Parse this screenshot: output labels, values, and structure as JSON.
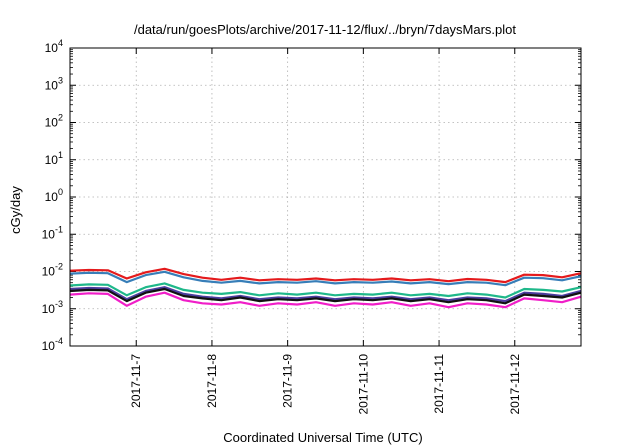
{
  "chart_data": {
    "type": "line",
    "title": "/data/run/goesPlots/archive/2017-11-12/flux/../bryn/7daysMars.plot",
    "xlabel": "Coordinated Universal Time (UTC)",
    "ylabel": "cGy/day",
    "y_scale": "log",
    "ylim": [
      0.0001,
      10000
    ],
    "y_ticks": [
      {
        "value": 0.0001,
        "base": "10",
        "exp": "-4"
      },
      {
        "value": 0.001,
        "base": "10",
        "exp": "-3"
      },
      {
        "value": 0.01,
        "base": "10",
        "exp": "-2"
      },
      {
        "value": 0.1,
        "base": "10",
        "exp": "-1"
      },
      {
        "value": 1,
        "base": "10",
        "exp": "0"
      },
      {
        "value": 10,
        "base": "10",
        "exp": "1"
      },
      {
        "value": 100,
        "base": "10",
        "exp": "2"
      },
      {
        "value": 1000,
        "base": "10",
        "exp": "3"
      },
      {
        "value": 10000,
        "base": "10",
        "exp": "4"
      }
    ],
    "xlim": [
      "2017-11-06T03:00",
      "2017-11-12T21:00"
    ],
    "x_ticks": [
      "2017-11-7",
      "2017-11-8",
      "2017-11-9",
      "2017-11-10",
      "2017-11-11",
      "2017-11-12"
    ],
    "x_tick_dates": [
      "2017-11-07T00:00",
      "2017-11-08T00:00",
      "2017-11-09T00:00",
      "2017-11-10T00:00",
      "2017-11-11T00:00",
      "2017-11-12T00:00"
    ],
    "grid": true,
    "legend": "none",
    "x": [
      "2017-11-06T03:00",
      "2017-11-06T09:00",
      "2017-11-06T15:00",
      "2017-11-06T21:00",
      "2017-11-07T03:00",
      "2017-11-07T09:00",
      "2017-11-07T15:00",
      "2017-11-07T21:00",
      "2017-11-08T03:00",
      "2017-11-08T09:00",
      "2017-11-08T15:00",
      "2017-11-08T21:00",
      "2017-11-09T03:00",
      "2017-11-09T09:00",
      "2017-11-09T15:00",
      "2017-11-09T21:00",
      "2017-11-10T03:00",
      "2017-11-10T09:00",
      "2017-11-10T15:00",
      "2017-11-10T21:00",
      "2017-11-11T03:00",
      "2017-11-11T09:00",
      "2017-11-11T15:00",
      "2017-11-11T21:00",
      "2017-11-12T03:00",
      "2017-11-12T09:00",
      "2017-11-12T15:00",
      "2017-11-12T21:00"
    ],
    "series": [
      {
        "color": "#e41a1c",
        "values": [
          0.0105,
          0.011,
          0.0108,
          0.0065,
          0.0095,
          0.0118,
          0.0085,
          0.0068,
          0.006,
          0.0068,
          0.0058,
          0.0062,
          0.006,
          0.0065,
          0.0058,
          0.0062,
          0.006,
          0.0065,
          0.0058,
          0.0062,
          0.0055,
          0.0063,
          0.006,
          0.0052,
          0.0082,
          0.008,
          0.007,
          0.009
        ]
      },
      {
        "color": "#377eb8",
        "values": [
          0.0088,
          0.0092,
          0.009,
          0.0052,
          0.008,
          0.0098,
          0.007,
          0.0056,
          0.005,
          0.0056,
          0.0048,
          0.0052,
          0.005,
          0.0055,
          0.0048,
          0.0052,
          0.005,
          0.0054,
          0.0048,
          0.0052,
          0.0046,
          0.0052,
          0.005,
          0.0043,
          0.0068,
          0.0066,
          0.0058,
          0.0075
        ]
      },
      {
        "color": "#1fb88a",
        "values": [
          0.0042,
          0.0045,
          0.0044,
          0.0023,
          0.0038,
          0.0048,
          0.0032,
          0.0027,
          0.0025,
          0.0028,
          0.0023,
          0.0026,
          0.0024,
          0.0027,
          0.0023,
          0.0025,
          0.0024,
          0.0027,
          0.0023,
          0.0025,
          0.0022,
          0.0026,
          0.0024,
          0.002,
          0.0034,
          0.0032,
          0.0029,
          0.0038
        ]
      },
      {
        "color": "#4b3d9e",
        "values": [
          0.0034,
          0.0036,
          0.0035,
          0.0018,
          0.003,
          0.0038,
          0.0025,
          0.0021,
          0.0019,
          0.0022,
          0.0018,
          0.002,
          0.0019,
          0.0021,
          0.0018,
          0.002,
          0.0019,
          0.0021,
          0.0018,
          0.002,
          0.0017,
          0.002,
          0.0019,
          0.0016,
          0.0027,
          0.0025,
          0.0022,
          0.003
        ]
      },
      {
        "color": "#111111",
        "values": [
          0.003,
          0.0032,
          0.0031,
          0.0016,
          0.0027,
          0.0034,
          0.0022,
          0.0019,
          0.0017,
          0.002,
          0.0016,
          0.0018,
          0.0017,
          0.0019,
          0.0016,
          0.0018,
          0.0017,
          0.0019,
          0.0016,
          0.0018,
          0.0015,
          0.0018,
          0.0017,
          0.0014,
          0.0024,
          0.0022,
          0.002,
          0.0027
        ]
      },
      {
        "color": "#f01ec8",
        "values": [
          0.0024,
          0.0026,
          0.0025,
          0.0012,
          0.0021,
          0.0027,
          0.0017,
          0.0014,
          0.0013,
          0.0015,
          0.0012,
          0.0014,
          0.0013,
          0.0015,
          0.0012,
          0.0014,
          0.0013,
          0.0015,
          0.0012,
          0.0014,
          0.0011,
          0.0014,
          0.0013,
          0.0011,
          0.0019,
          0.0017,
          0.0015,
          0.0021
        ]
      }
    ]
  }
}
